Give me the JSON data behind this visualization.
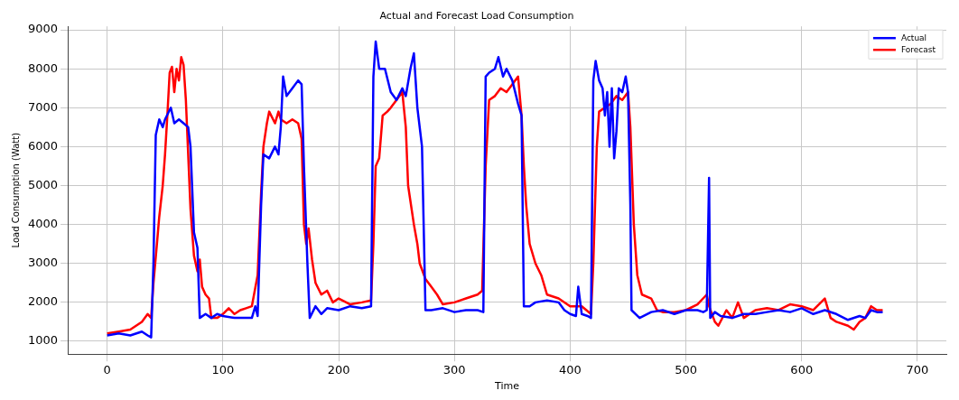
{
  "chart_data": {
    "type": "line",
    "title": "Actual and Forecast Load Consumption",
    "xlabel": "Time",
    "ylabel": "Load Consumption (Watt)",
    "xlim": [
      -34,
      725
    ],
    "xticks": [
      0,
      100,
      200,
      300,
      400,
      500,
      600,
      700
    ],
    "ylim": [
      670,
      9090
    ],
    "yticks": [
      1000,
      2000,
      3000,
      4000,
      5000,
      6000,
      7000,
      8000,
      9000
    ],
    "grid": true,
    "legend": "top right",
    "marker": "none",
    "line_style": "solid",
    "series": [
      {
        "name": "Actual",
        "color": "#0000ff",
        "x": [
          0,
          10,
          20,
          30,
          35,
          38,
          40,
          42,
          45,
          48,
          50,
          55,
          58,
          62,
          66,
          70,
          72,
          75,
          78,
          80,
          85,
          90,
          95,
          100,
          110,
          120,
          125,
          128,
          130,
          133,
          135,
          140,
          145,
          148,
          150,
          152,
          155,
          160,
          165,
          168,
          170,
          173,
          175,
          180,
          185,
          190,
          200,
          210,
          220,
          228,
          230,
          232,
          235,
          240,
          245,
          250,
          255,
          258,
          262,
          265,
          268,
          270,
          272,
          275,
          280,
          290,
          300,
          310,
          320,
          325,
          327,
          330,
          335,
          338,
          342,
          345,
          350,
          355,
          358,
          360,
          365,
          370,
          380,
          390,
          395,
          400,
          405,
          407,
          410,
          415,
          418,
          420,
          422,
          425,
          428,
          430,
          432,
          434,
          436,
          438,
          440,
          442,
          445,
          448,
          450,
          452,
          453,
          460,
          470,
          480,
          490,
          500,
          510,
          515,
          518,
          520,
          521,
          525,
          530,
          540,
          550,
          560,
          570,
          580,
          590,
          600,
          610,
          620,
          630,
          640,
          650,
          655,
          660,
          665,
          670
        ],
        "values": [
          1150,
          1200,
          1150,
          1250,
          1150,
          1100,
          3000,
          6300,
          6700,
          6500,
          6700,
          7000,
          6600,
          6700,
          6600,
          6500,
          6000,
          3800,
          3400,
          1600,
          1700,
          1600,
          1700,
          1650,
          1600,
          1600,
          1600,
          1900,
          1650,
          4500,
          5800,
          5700,
          6000,
          5800,
          6500,
          7800,
          7300,
          7500,
          7700,
          7600,
          5500,
          3000,
          1600,
          1900,
          1700,
          1850,
          1800,
          1900,
          1850,
          1900,
          7800,
          8700,
          8000,
          8000,
          7400,
          7200,
          7500,
          7300,
          8000,
          8400,
          7000,
          6500,
          6000,
          1800,
          1800,
          1850,
          1750,
          1800,
          1800,
          1750,
          7800,
          7900,
          8000,
          8300,
          7800,
          8000,
          7700,
          7100,
          6800,
          1900,
          1900,
          2000,
          2050,
          2000,
          1800,
          1700,
          1650,
          2400,
          1700,
          1650,
          1600,
          7700,
          8200,
          7700,
          7500,
          6800,
          7400,
          6000,
          7500,
          5700,
          6400,
          7500,
          7400,
          7800,
          7400,
          4500,
          1800,
          1600,
          1750,
          1800,
          1700,
          1800,
          1800,
          1750,
          1800,
          5200,
          1600,
          1750,
          1650,
          1600,
          1700,
          1700,
          1750,
          1800,
          1750,
          1850,
          1700,
          1800,
          1700,
          1550,
          1650,
          1600,
          1800,
          1750,
          1750
        ]
      },
      {
        "name": "Forecast",
        "color": "#ff0000",
        "x": [
          0,
          10,
          20,
          30,
          35,
          38,
          40,
          43,
          45,
          48,
          50,
          52,
          54,
          56,
          58,
          60,
          62,
          64,
          66,
          68,
          70,
          72,
          75,
          78,
          80,
          82,
          85,
          88,
          90,
          95,
          100,
          105,
          110,
          115,
          120,
          125,
          130,
          133,
          135,
          138,
          140,
          145,
          148,
          150,
          155,
          160,
          165,
          168,
          170,
          172,
          174,
          177,
          180,
          185,
          190,
          195,
          200,
          210,
          220,
          228,
          230,
          232,
          235,
          238,
          242,
          245,
          250,
          255,
          258,
          260,
          265,
          268,
          270,
          275,
          280,
          285,
          290,
          300,
          310,
          320,
          324,
          327,
          330,
          335,
          340,
          345,
          350,
          355,
          358,
          360,
          362,
          365,
          370,
          375,
          380,
          390,
          400,
          410,
          418,
          420,
          423,
          425,
          430,
          435,
          440,
          445,
          450,
          452,
          455,
          458,
          462,
          470,
          475,
          480,
          490,
          500,
          510,
          518,
          520,
          525,
          528,
          535,
          540,
          545,
          550,
          560,
          570,
          580,
          590,
          600,
          610,
          620,
          625,
          630,
          640,
          645,
          650,
          655,
          660,
          665,
          670
        ],
        "values": [
          1200,
          1250,
          1300,
          1500,
          1700,
          1600,
          2500,
          3500,
          4200,
          5000,
          5800,
          6800,
          7900,
          8050,
          7400,
          8000,
          7700,
          8300,
          8100,
          7200,
          5800,
          4400,
          3200,
          2800,
          3100,
          2400,
          2200,
          2100,
          1600,
          1600,
          1700,
          1850,
          1700,
          1800,
          1850,
          1900,
          2700,
          4800,
          6000,
          6600,
          6900,
          6600,
          6900,
          6700,
          6600,
          6700,
          6600,
          6200,
          4000,
          3500,
          3900,
          3100,
          2500,
          2200,
          2300,
          2000,
          2100,
          1950,
          2000,
          2050,
          3500,
          5500,
          5700,
          6800,
          6900,
          7000,
          7200,
          7400,
          6500,
          5000,
          4000,
          3500,
          3000,
          2600,
          2400,
          2200,
          1950,
          2000,
          2100,
          2200,
          2300,
          5500,
          7200,
          7300,
          7500,
          7400,
          7600,
          7800,
          6800,
          5500,
          4500,
          3500,
          3000,
          2700,
          2200,
          2100,
          1900,
          1900,
          1700,
          3000,
          6000,
          6900,
          7000,
          7100,
          7300,
          7200,
          7400,
          6500,
          4000,
          2700,
          2200,
          2100,
          1800,
          1750,
          1750,
          1800,
          1950,
          2200,
          1900,
          1500,
          1400,
          1800,
          1600,
          2000,
          1600,
          1800,
          1850,
          1800,
          1950,
          1900,
          1800,
          2100,
          1600,
          1500,
          1400,
          1300,
          1500,
          1600,
          1900,
          1800,
          1800
        ]
      }
    ]
  }
}
